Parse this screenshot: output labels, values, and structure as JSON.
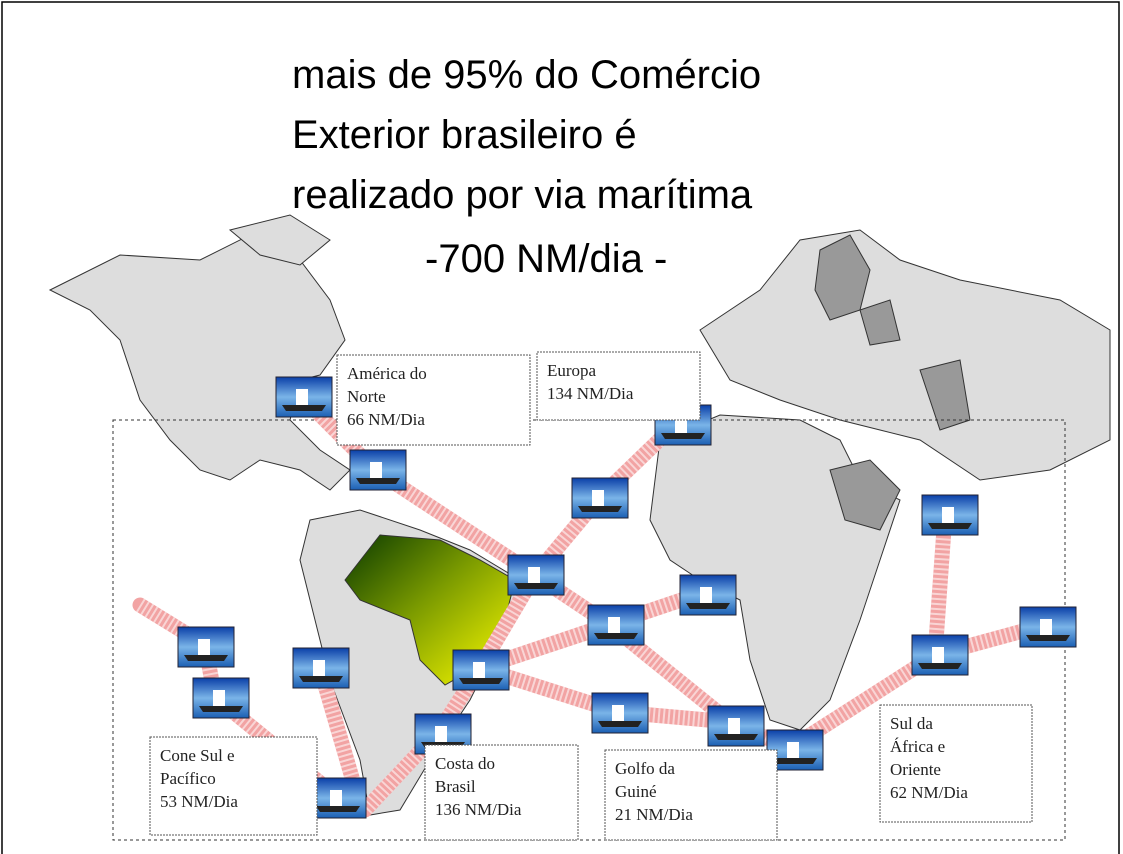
{
  "title": {
    "lines": [
      "mais de 95% do Comércio",
      "Exterior brasileiro é",
      "realizado por via marítima",
      "-700 NM/dia -"
    ]
  },
  "routes": [
    {
      "lines": [
        "América do",
        "Norte",
        "66 NM/Dia"
      ]
    },
    {
      "lines": [
        "Europa",
        "134 NM/Dia"
      ]
    },
    {
      "lines": [
        "Cone Sul e",
        "Pacífico",
        "53 NM/Dia"
      ]
    },
    {
      "lines": [
        "Costa do",
        "Brasil",
        "136  NM/Dia"
      ]
    },
    {
      "lines": [
        "Golfo da",
        "Guiné",
        "21  NM/Dia"
      ]
    },
    {
      "lines": [
        "Sul da",
        "África e",
        "Oriente",
        "62 NM/Dia"
      ]
    }
  ]
}
